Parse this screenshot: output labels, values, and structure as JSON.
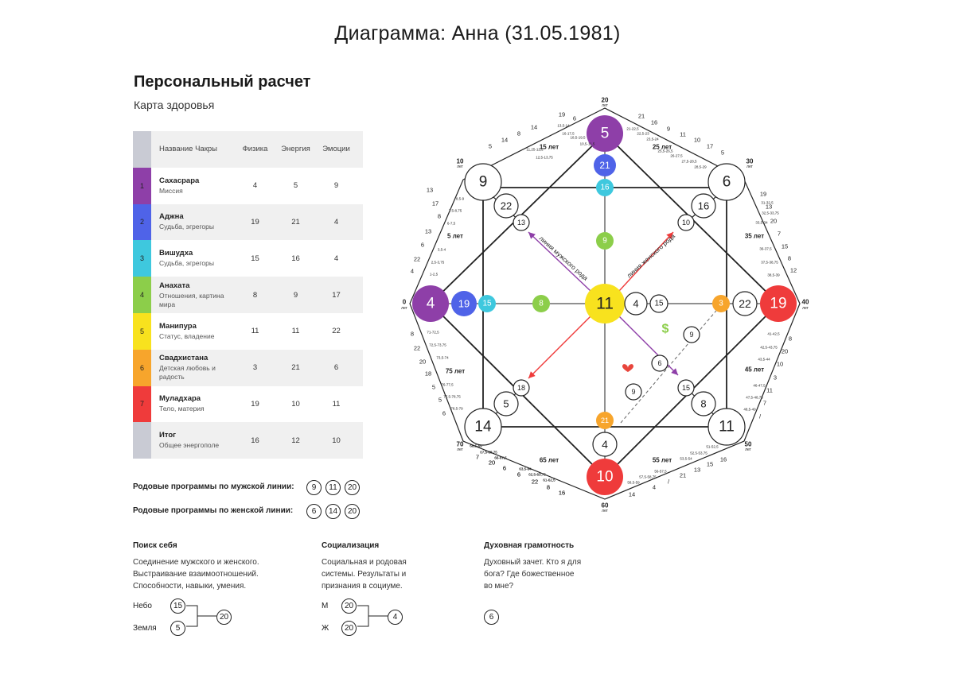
{
  "header": {
    "title": "Диаграмма: Анна (31.05.1981)"
  },
  "section": {
    "title": "Персональный расчет",
    "subtitle": "Карта здоровья"
  },
  "table": {
    "headers": [
      "Название Чакры",
      "Физика",
      "Энергия",
      "Эмоции"
    ],
    "rows": [
      {
        "num": "1",
        "name": "Сахасрара",
        "desc": "Миссия",
        "phys": "4",
        "energy": "5",
        "emo": "9",
        "color": "#8e3fa8"
      },
      {
        "num": "2",
        "name": "Аджна",
        "desc": "Судьба, эгрегоры",
        "phys": "19",
        "energy": "21",
        "emo": "4",
        "color": "#4f63e8"
      },
      {
        "num": "3",
        "name": "Вишудха",
        "desc": "Судьба, эгрегоры",
        "phys": "15",
        "energy": "16",
        "emo": "4",
        "color": "#3ec8de"
      },
      {
        "num": "4",
        "name": "Анахата",
        "desc": "Отношения, картина мира",
        "phys": "8",
        "energy": "9",
        "emo": "17",
        "color": "#8cce4a"
      },
      {
        "num": "5",
        "name": "Манипура",
        "desc": "Статус, владение",
        "phys": "11",
        "energy": "11",
        "emo": "22",
        "color": "#f8e21e"
      },
      {
        "num": "6",
        "name": "Свадхистана",
        "desc": "Детская любовь и радость",
        "phys": "3",
        "energy": "21",
        "emo": "6",
        "color": "#f7a52c"
      },
      {
        "num": "7",
        "name": "Муладхара",
        "desc": "Тело, материя",
        "phys": "19",
        "energy": "10",
        "emo": "11",
        "color": "#ef3b3b"
      },
      {
        "num": "",
        "name": "Итог",
        "desc": "Общее энергополе",
        "phys": "16",
        "energy": "12",
        "emo": "10",
        "color": "#c9cbd4"
      }
    ]
  },
  "programs": {
    "male": {
      "label": "Родовые программы по мужской линии:",
      "values": [
        "9",
        "11",
        "20"
      ]
    },
    "female": {
      "label": "Родовые программы по женской линии:",
      "values": [
        "6",
        "14",
        "20"
      ]
    }
  },
  "bottom": {
    "search": {
      "title": "Поиск себя",
      "text": [
        "Соединение мужского и женского.",
        "Выстраивание взаимоотношений.",
        "Способности, навыки, умения."
      ],
      "sky_label": "Небо",
      "sky": "15",
      "earth_label": "Земля",
      "earth": "5",
      "result": "20"
    },
    "social": {
      "title": "Социализация",
      "text": [
        "Социальная и родовая",
        "системы. Результаты и",
        "признания в социуме."
      ],
      "m_label": "М",
      "m": "20",
      "f_label": "Ж",
      "f": "20",
      "result": "4"
    },
    "spirit": {
      "title": "Духовная грамотность",
      "text": [
        "Духовный зачет. Кто я для",
        "бога? Где божественное",
        "во мне?"
      ],
      "result": "6"
    }
  },
  "matrix": {
    "colors": {
      "purple": "#8e3fa8",
      "blue": "#4f63e8",
      "cyan": "#3ec8de",
      "green": "#8cce4a",
      "yellow": "#f8e21e",
      "orange": "#f7a52c",
      "red": "#ef3b3b",
      "dollar": "#8cce4a",
      "heart": "#e8453c"
    },
    "top": [
      "5",
      "21",
      "16",
      "9"
    ],
    "left": [
      "4",
      "19",
      "15",
      "8"
    ],
    "center": "11",
    "right": [
      "19",
      "22",
      "3",
      "15",
      "4"
    ],
    "bottom": [
      "10",
      "4",
      "21"
    ],
    "corners": {
      "tl": "9",
      "tr": "6",
      "bl": "14",
      "br": "11"
    },
    "inner": {
      "tl": "22",
      "tr": "16",
      "bl": "5",
      "br": "8",
      "tl2": "13",
      "tr2": "10",
      "bl2": "18",
      "br2": "15"
    },
    "extra": {
      "line1": "9",
      "line2": "6",
      "line3": "9"
    },
    "line_labels": {
      "male": "линия мужского рода",
      "female": "линия женского рода"
    },
    "ages": {
      "a0": "0",
      "a10": "10",
      "a20": "20",
      "a30": "30",
      "a40": "40",
      "a50": "50",
      "a60": "60",
      "a70": "70",
      "let": "лет",
      "y5": "5 лет",
      "y15": "15 лет",
      "y25": "25 лет",
      "y35": "35 лет",
      "y45": "45 лет",
      "y55": "55 лет",
      "y65": "65 лет",
      "y75": "75 лет"
    },
    "outer_numbers": {
      "top_left": [
        "19",
        "6",
        "14",
        "8",
        "14",
        "5"
      ],
      "top_right": [
        "21",
        "16",
        "9",
        "11",
        "10",
        "17",
        "5"
      ],
      "right_top": [
        "19",
        "13",
        "20",
        "7",
        "15",
        "8",
        "12"
      ],
      "right_bottom": [
        "8",
        "20",
        "10",
        "3",
        "11",
        "7",
        "/"
      ],
      "bottom_right": [
        "16",
        "15",
        "13",
        "21",
        "/",
        "4",
        "14"
      ],
      "bottom_left": [
        "16",
        "8",
        "22",
        "6",
        "6",
        "20",
        "7"
      ],
      "left_bottom": [
        "8",
        "22",
        "20",
        "18",
        "5",
        "5",
        "6"
      ],
      "left_top": [
        "13",
        "17",
        "8",
        "13",
        "6",
        "22",
        "4"
      ]
    },
    "period_labels": {
      "top_left": [
        "12,5-13,75",
        "11,25-12,5",
        "13,5-14",
        "16-17,5",
        "18,5-19,5",
        "10,5-11,5"
      ],
      "top_right": [
        "21-22,5",
        "22,5-23",
        "23,5-24",
        "25,5-26,5",
        "26-27,5",
        "27,5-28,5",
        "28,5-29"
      ],
      "right_top": [
        "31-32,5",
        "32,5-33,75",
        "33,5-34",
        "36-37,5",
        "37,5-38,75",
        "38,5-39"
      ],
      "right_bottom": [
        "41-42,5",
        "42,5-43,75",
        "43,5-44",
        "46-47,5",
        "47,5-48,75",
        "48,5-49"
      ],
      "bottom_right": [
        "51-52,5",
        "52,5-53,75",
        "53,5-54",
        "56-57,5",
        "57,5-58,75",
        "58,5-59"
      ],
      "bottom_left": [
        "61-62,5",
        "62,5-63,75",
        "63,5-64",
        "66-67,5",
        "67,5-68,75",
        "68,5-69"
      ],
      "left_bottom": [
        "71-72,5",
        "72,5-73,75",
        "73,5-74",
        "76-77,5",
        "77,5-78,75",
        "78,5-79"
      ],
      "left_top": [
        "1-2,5",
        "2,5-3,75",
        "3,5-4",
        "6-7,5",
        "7,5-8,75",
        "8,5-9"
      ]
    }
  }
}
